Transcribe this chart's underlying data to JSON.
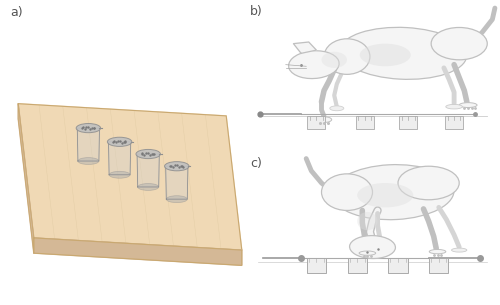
{
  "background_color": "#ffffff",
  "label_a": "a)",
  "label_b": "b)",
  "label_c": "c)",
  "label_fontsize": 9,
  "label_color": "#555555",
  "fig_width": 5.0,
  "fig_height": 3.05,
  "dpi": 100,
  "board_top_color": "#f0d9b5",
  "board_side_color": "#d4b896",
  "board_edge_color": "#c9a870",
  "jar_body_color": "#c8c8c8",
  "jar_outline_color": "#909090",
  "jar_lid_color": "#b8b8b8",
  "cat_fill": "#f5f5f5",
  "cat_shade": "#e0e0e0",
  "cat_outline": "#c0c0c0",
  "apparatus_color": "#aaaaaa",
  "container_fill": "#eeeeee",
  "container_edge": "#aaaaaa"
}
